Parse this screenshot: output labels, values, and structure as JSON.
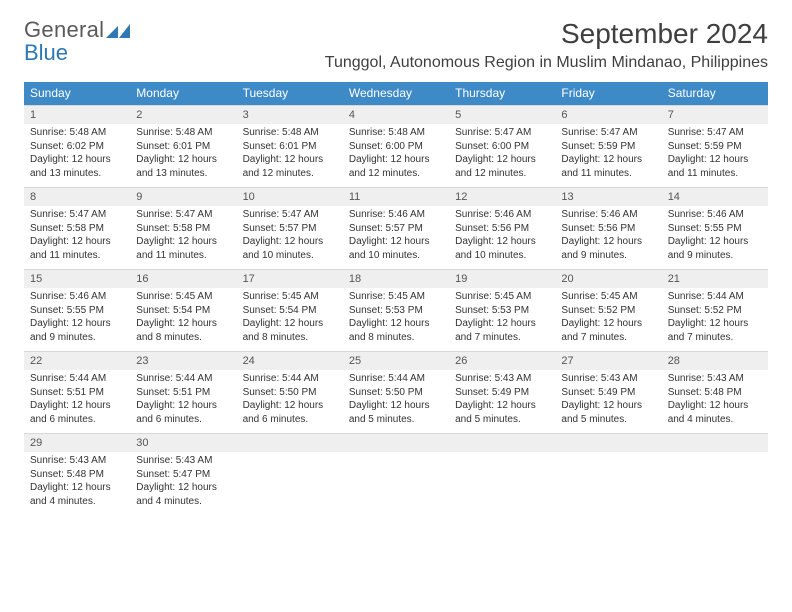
{
  "logo": {
    "word1": "General",
    "word2": "Blue"
  },
  "title": "September 2024",
  "location": "Tunggol, Autonomous Region in Muslim Mindanao, Philippines",
  "colors": {
    "header_bar": "#3e8ac6",
    "header_text": "#ffffff",
    "daynum_bg": "#efefef",
    "body_text": "#333333",
    "logo_gray": "#5a5a5a",
    "logo_blue": "#2f78b3"
  },
  "weekdays": [
    "Sunday",
    "Monday",
    "Tuesday",
    "Wednesday",
    "Thursday",
    "Friday",
    "Saturday"
  ],
  "weeks": [
    [
      {
        "n": "1",
        "sr": "Sunrise: 5:48 AM",
        "ss": "Sunset: 6:02 PM",
        "d1": "Daylight: 12 hours",
        "d2": "and 13 minutes."
      },
      {
        "n": "2",
        "sr": "Sunrise: 5:48 AM",
        "ss": "Sunset: 6:01 PM",
        "d1": "Daylight: 12 hours",
        "d2": "and 13 minutes."
      },
      {
        "n": "3",
        "sr": "Sunrise: 5:48 AM",
        "ss": "Sunset: 6:01 PM",
        "d1": "Daylight: 12 hours",
        "d2": "and 12 minutes."
      },
      {
        "n": "4",
        "sr": "Sunrise: 5:48 AM",
        "ss": "Sunset: 6:00 PM",
        "d1": "Daylight: 12 hours",
        "d2": "and 12 minutes."
      },
      {
        "n": "5",
        "sr": "Sunrise: 5:47 AM",
        "ss": "Sunset: 6:00 PM",
        "d1": "Daylight: 12 hours",
        "d2": "and 12 minutes."
      },
      {
        "n": "6",
        "sr": "Sunrise: 5:47 AM",
        "ss": "Sunset: 5:59 PM",
        "d1": "Daylight: 12 hours",
        "d2": "and 11 minutes."
      },
      {
        "n": "7",
        "sr": "Sunrise: 5:47 AM",
        "ss": "Sunset: 5:59 PM",
        "d1": "Daylight: 12 hours",
        "d2": "and 11 minutes."
      }
    ],
    [
      {
        "n": "8",
        "sr": "Sunrise: 5:47 AM",
        "ss": "Sunset: 5:58 PM",
        "d1": "Daylight: 12 hours",
        "d2": "and 11 minutes."
      },
      {
        "n": "9",
        "sr": "Sunrise: 5:47 AM",
        "ss": "Sunset: 5:58 PM",
        "d1": "Daylight: 12 hours",
        "d2": "and 11 minutes."
      },
      {
        "n": "10",
        "sr": "Sunrise: 5:47 AM",
        "ss": "Sunset: 5:57 PM",
        "d1": "Daylight: 12 hours",
        "d2": "and 10 minutes."
      },
      {
        "n": "11",
        "sr": "Sunrise: 5:46 AM",
        "ss": "Sunset: 5:57 PM",
        "d1": "Daylight: 12 hours",
        "d2": "and 10 minutes."
      },
      {
        "n": "12",
        "sr": "Sunrise: 5:46 AM",
        "ss": "Sunset: 5:56 PM",
        "d1": "Daylight: 12 hours",
        "d2": "and 10 minutes."
      },
      {
        "n": "13",
        "sr": "Sunrise: 5:46 AM",
        "ss": "Sunset: 5:56 PM",
        "d1": "Daylight: 12 hours",
        "d2": "and 9 minutes."
      },
      {
        "n": "14",
        "sr": "Sunrise: 5:46 AM",
        "ss": "Sunset: 5:55 PM",
        "d1": "Daylight: 12 hours",
        "d2": "and 9 minutes."
      }
    ],
    [
      {
        "n": "15",
        "sr": "Sunrise: 5:46 AM",
        "ss": "Sunset: 5:55 PM",
        "d1": "Daylight: 12 hours",
        "d2": "and 9 minutes."
      },
      {
        "n": "16",
        "sr": "Sunrise: 5:45 AM",
        "ss": "Sunset: 5:54 PM",
        "d1": "Daylight: 12 hours",
        "d2": "and 8 minutes."
      },
      {
        "n": "17",
        "sr": "Sunrise: 5:45 AM",
        "ss": "Sunset: 5:54 PM",
        "d1": "Daylight: 12 hours",
        "d2": "and 8 minutes."
      },
      {
        "n": "18",
        "sr": "Sunrise: 5:45 AM",
        "ss": "Sunset: 5:53 PM",
        "d1": "Daylight: 12 hours",
        "d2": "and 8 minutes."
      },
      {
        "n": "19",
        "sr": "Sunrise: 5:45 AM",
        "ss": "Sunset: 5:53 PM",
        "d1": "Daylight: 12 hours",
        "d2": "and 7 minutes."
      },
      {
        "n": "20",
        "sr": "Sunrise: 5:45 AM",
        "ss": "Sunset: 5:52 PM",
        "d1": "Daylight: 12 hours",
        "d2": "and 7 minutes."
      },
      {
        "n": "21",
        "sr": "Sunrise: 5:44 AM",
        "ss": "Sunset: 5:52 PM",
        "d1": "Daylight: 12 hours",
        "d2": "and 7 minutes."
      }
    ],
    [
      {
        "n": "22",
        "sr": "Sunrise: 5:44 AM",
        "ss": "Sunset: 5:51 PM",
        "d1": "Daylight: 12 hours",
        "d2": "and 6 minutes."
      },
      {
        "n": "23",
        "sr": "Sunrise: 5:44 AM",
        "ss": "Sunset: 5:51 PM",
        "d1": "Daylight: 12 hours",
        "d2": "and 6 minutes."
      },
      {
        "n": "24",
        "sr": "Sunrise: 5:44 AM",
        "ss": "Sunset: 5:50 PM",
        "d1": "Daylight: 12 hours",
        "d2": "and 6 minutes."
      },
      {
        "n": "25",
        "sr": "Sunrise: 5:44 AM",
        "ss": "Sunset: 5:50 PM",
        "d1": "Daylight: 12 hours",
        "d2": "and 5 minutes."
      },
      {
        "n": "26",
        "sr": "Sunrise: 5:43 AM",
        "ss": "Sunset: 5:49 PM",
        "d1": "Daylight: 12 hours",
        "d2": "and 5 minutes."
      },
      {
        "n": "27",
        "sr": "Sunrise: 5:43 AM",
        "ss": "Sunset: 5:49 PM",
        "d1": "Daylight: 12 hours",
        "d2": "and 5 minutes."
      },
      {
        "n": "28",
        "sr": "Sunrise: 5:43 AM",
        "ss": "Sunset: 5:48 PM",
        "d1": "Daylight: 12 hours",
        "d2": "and 4 minutes."
      }
    ],
    [
      {
        "n": "29",
        "sr": "Sunrise: 5:43 AM",
        "ss": "Sunset: 5:48 PM",
        "d1": "Daylight: 12 hours",
        "d2": "and 4 minutes."
      },
      {
        "n": "30",
        "sr": "Sunrise: 5:43 AM",
        "ss": "Sunset: 5:47 PM",
        "d1": "Daylight: 12 hours",
        "d2": "and 4 minutes."
      },
      {
        "empty": true
      },
      {
        "empty": true
      },
      {
        "empty": true
      },
      {
        "empty": true
      },
      {
        "empty": true
      }
    ]
  ]
}
